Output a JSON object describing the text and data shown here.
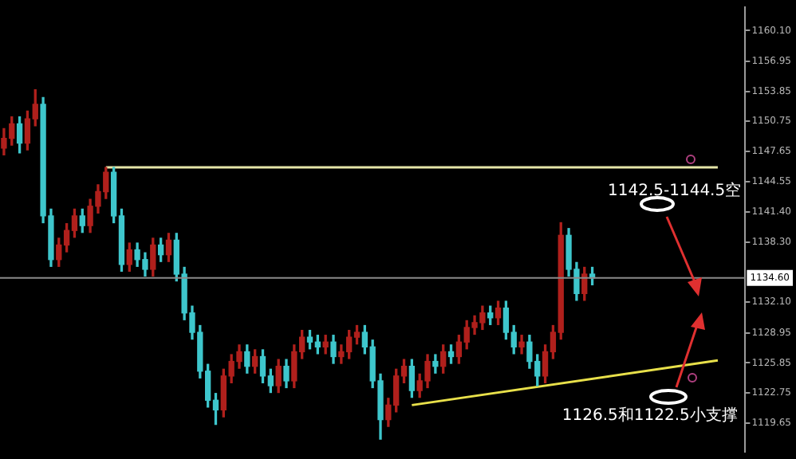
{
  "chart_data": {
    "type": "candlestick",
    "categories": [
      null,
      null,
      null,
      null,
      null,
      null,
      null,
      null,
      null,
      null,
      null,
      null,
      null,
      null,
      null,
      null,
      null,
      null,
      null,
      null,
      null,
      null,
      null,
      null,
      null,
      null,
      null,
      null,
      null,
      null,
      null,
      null,
      null,
      null,
      null,
      null,
      null,
      null,
      null,
      null,
      null,
      null,
      null,
      null,
      null,
      null,
      null,
      null,
      null,
      null,
      null,
      null,
      null,
      null,
      null,
      null,
      null,
      null,
      null,
      null,
      null,
      null,
      null,
      null,
      null,
      null,
      null,
      null,
      null,
      null,
      null,
      null,
      null,
      null,
      null,
      null,
      null,
      null,
      null,
      null,
      null,
      null,
      null,
      null,
      null,
      null,
      null,
      null,
      null,
      null,
      null,
      null,
      null,
      null,
      null
    ],
    "ohlc": [
      [
        1148,
        1150,
        1147.3,
        1149
      ],
      [
        1149,
        1151.2,
        1148.3,
        1150.5
      ],
      [
        1150.5,
        1151.2,
        1147.5,
        1148.5
      ],
      [
        1148.5,
        1151.8,
        1147.8,
        1151
      ],
      [
        1151,
        1154,
        1150.3,
        1152.5
      ],
      [
        1152.5,
        1153.2,
        1140.3,
        1141
      ],
      [
        1141,
        1141.7,
        1135.8,
        1136.5
      ],
      [
        1136.5,
        1138.7,
        1135.8,
        1138
      ],
      [
        1138,
        1140.2,
        1137.3,
        1139.5
      ],
      [
        1139.5,
        1141.7,
        1138.8,
        1141
      ],
      [
        1141,
        1141.7,
        1139.3,
        1140
      ],
      [
        1140,
        1142.7,
        1139.3,
        1142
      ],
      [
        1142,
        1144.2,
        1141.3,
        1143.5
      ],
      [
        1143.5,
        1146,
        1142.8,
        1145.5
      ],
      [
        1145.5,
        1146,
        1140.3,
        1141
      ],
      [
        1141,
        1141.7,
        1135.3,
        1136
      ],
      [
        1136,
        1138.2,
        1135.3,
        1137.5
      ],
      [
        1137.5,
        1138.2,
        1135.8,
        1136.5
      ],
      [
        1136.5,
        1137.2,
        1134.8,
        1135.5
      ],
      [
        1135.5,
        1138.7,
        1134.8,
        1138
      ],
      [
        1138,
        1138.7,
        1136.3,
        1137
      ],
      [
        1137,
        1139.2,
        1136.3,
        1138.5
      ],
      [
        1138.5,
        1139.2,
        1134.3,
        1135
      ],
      [
        1135,
        1135.7,
        1130.3,
        1131
      ],
      [
        1131,
        1131.7,
        1128.3,
        1129
      ],
      [
        1129,
        1129.7,
        1124.3,
        1125
      ],
      [
        1125,
        1125.7,
        1121.3,
        1122
      ],
      [
        1122,
        1122.7,
        1119.5,
        1121
      ],
      [
        1121,
        1125.2,
        1120.3,
        1124.5
      ],
      [
        1124.5,
        1126.7,
        1123.8,
        1126
      ],
      [
        1126,
        1127.7,
        1125.3,
        1127
      ],
      [
        1127,
        1127.7,
        1124.8,
        1125.5
      ],
      [
        1125.5,
        1127.2,
        1124.8,
        1126.5
      ],
      [
        1126.5,
        1127.2,
        1123.8,
        1124.5
      ],
      [
        1124.5,
        1125.2,
        1122.8,
        1123.5
      ],
      [
        1123.5,
        1126.2,
        1122.8,
        1125.5
      ],
      [
        1125.5,
        1126.2,
        1123.3,
        1124
      ],
      [
        1124,
        1127.7,
        1123.3,
        1127
      ],
      [
        1127,
        1129.2,
        1126.3,
        1128.5
      ],
      [
        1128.5,
        1129.2,
        1127.3,
        1128
      ],
      [
        1128,
        1128.7,
        1126.8,
        1127.5
      ],
      [
        1127.5,
        1128.7,
        1126.8,
        1128
      ],
      [
        1128,
        1128.7,
        1125.8,
        1126.5
      ],
      [
        1126.5,
        1127.7,
        1125.8,
        1127
      ],
      [
        1127,
        1129.2,
        1126.3,
        1128.5
      ],
      [
        1128.5,
        1129.7,
        1127.8,
        1129
      ],
      [
        1129,
        1129.7,
        1126.8,
        1127.5
      ],
      [
        1127.5,
        1128.2,
        1123.3,
        1124
      ],
      [
        1124,
        1124.7,
        1118,
        1120
      ],
      [
        1120,
        1122.2,
        1119.3,
        1121.5
      ],
      [
        1121.5,
        1125.2,
        1120.8,
        1124.5
      ],
      [
        1124.5,
        1126.2,
        1123.8,
        1125.5
      ],
      [
        1125.5,
        1126.2,
        1122.3,
        1123
      ],
      [
        1123,
        1124.7,
        1122.3,
        1124
      ],
      [
        1124,
        1126.7,
        1123.3,
        1126
      ],
      [
        1126,
        1126.7,
        1124.8,
        1125.5
      ],
      [
        1125.5,
        1127.7,
        1124.8,
        1127
      ],
      [
        1127,
        1127.7,
        1125.8,
        1126.5
      ],
      [
        1126.5,
        1128.7,
        1125.8,
        1128
      ],
      [
        1128,
        1130.2,
        1127.3,
        1129.5
      ],
      [
        1129.5,
        1130.7,
        1128.8,
        1130
      ],
      [
        1130,
        1131.7,
        1129.3,
        1131
      ],
      [
        1131,
        1131.7,
        1129.8,
        1130.5
      ],
      [
        1130.5,
        1132.2,
        1129.8,
        1131.5
      ],
      [
        1131.5,
        1132.2,
        1128.3,
        1129
      ],
      [
        1129,
        1129.7,
        1126.8,
        1127.5
      ],
      [
        1127.5,
        1128.7,
        1126.8,
        1128
      ],
      [
        1128,
        1128.7,
        1125.3,
        1126
      ],
      [
        1126,
        1126.7,
        1123.5,
        1124.5
      ],
      [
        1124.5,
        1127.7,
        1123.8,
        1127
      ],
      [
        1127,
        1129.7,
        1126.3,
        1129
      ],
      [
        1129,
        1140.3,
        1128.3,
        1139
      ],
      [
        1139,
        1139.7,
        1134.8,
        1135.5
      ],
      [
        1135.5,
        1136.2,
        1132.3,
        1133
      ],
      [
        1133,
        1135.7,
        1132.3,
        1135
      ],
      [
        1135,
        1135.7,
        1133.9,
        1134.6
      ],
      null,
      null,
      null,
      null,
      null,
      null,
      null,
      null,
      null,
      null,
      null,
      null,
      null,
      null,
      null,
      null,
      null,
      null,
      null
    ],
    "colors": [
      "#b0201c",
      "#b0201c",
      "#3ec6cc",
      "#b0201c",
      "#b0201c",
      "#3ec6cc",
      "#3ec6cc",
      "#b0201c",
      "#b0201c",
      "#b0201c",
      "#3ec6cc",
      "#b0201c",
      "#b0201c",
      "#b0201c",
      "#3ec6cc",
      "#3ec6cc",
      "#b0201c",
      "#3ec6cc",
      "#3ec6cc",
      "#b0201c",
      "#3ec6cc",
      "#b0201c",
      "#3ec6cc",
      "#3ec6cc",
      "#3ec6cc",
      "#3ec6cc",
      "#3ec6cc",
      "#3ec6cc",
      "#b0201c",
      "#b0201c",
      "#b0201c",
      "#3ec6cc",
      "#b0201c",
      "#3ec6cc",
      "#3ec6cc",
      "#b0201c",
      "#3ec6cc",
      "#b0201c",
      "#b0201c",
      "#3ec6cc",
      "#3ec6cc",
      "#b0201c",
      "#3ec6cc",
      "#b0201c",
      "#b0201c",
      "#b0201c",
      "#3ec6cc",
      "#3ec6cc",
      "#3ec6cc",
      "#b0201c",
      "#b0201c",
      "#b0201c",
      "#3ec6cc",
      "#b0201c",
      "#b0201c",
      "#3ec6cc",
      "#b0201c",
      "#3ec6cc",
      "#b0201c",
      "#b0201c",
      "#b0201c",
      "#b0201c",
      "#3ec6cc",
      "#b0201c",
      "#3ec6cc",
      "#3ec6cc",
      "#b0201c",
      "#3ec6cc",
      "#3ec6cc",
      "#b0201c",
      "#b0201c",
      "#b0201c",
      "#3ec6cc",
      "#3ec6cc",
      "#b0201c",
      "#3ec6cc",
      null,
      null,
      null,
      null,
      null,
      null,
      null,
      null,
      null,
      null,
      null,
      null,
      null,
      null,
      null,
      null,
      null,
      null,
      null
    ],
    "series": [
      {
        "type": "line",
        "values": [
          null,
          null,
          null,
          null,
          null,
          null,
          null,
          null,
          null,
          null,
          null,
          null,
          null,
          1146,
          null,
          null,
          null,
          null,
          null,
          null,
          null,
          null,
          null,
          null,
          null,
          null,
          null,
          null,
          null,
          null,
          null,
          null,
          null,
          null,
          null,
          null,
          null,
          null,
          null,
          null,
          null,
          null,
          null,
          null,
          null,
          null,
          null,
          null,
          null,
          null,
          null,
          null,
          null,
          null,
          null,
          null,
          null,
          null,
          null,
          null,
          null,
          null,
          null,
          null,
          null,
          null,
          null,
          null,
          null,
          null,
          null,
          null,
          null,
          null,
          null,
          null,
          null,
          null,
          null,
          null,
          null,
          null,
          null,
          null,
          null,
          null,
          null,
          null,
          null,
          null,
          null,
          1146,
          null,
          null,
          null
        ],
        "color": "#e6e6a8"
      },
      {
        "type": "line",
        "values": [
          null,
          null,
          null,
          null,
          null,
          null,
          null,
          null,
          null,
          null,
          null,
          null,
          null,
          null,
          null,
          null,
          null,
          null,
          null,
          null,
          null,
          null,
          null,
          null,
          null,
          null,
          null,
          null,
          null,
          null,
          null,
          null,
          null,
          null,
          null,
          null,
          null,
          null,
          null,
          null,
          null,
          null,
          null,
          null,
          null,
          null,
          null,
          null,
          null,
          null,
          null,
          null,
          1121.5,
          null,
          null,
          null,
          null,
          null,
          null,
          null,
          null,
          null,
          null,
          null,
          null,
          null,
          null,
          null,
          null,
          null,
          null,
          null,
          null,
          null,
          null,
          null,
          null,
          null,
          null,
          null,
          null,
          null,
          null,
          null,
          null,
          null,
          null,
          null,
          null,
          null,
          null,
          1126.1,
          null,
          null,
          null
        ],
        "color": "#e8e04a"
      }
    ],
    "ylim": [
      1116.7,
      1162.5
    ],
    "yticks": [
      {
        "value": 1160.1,
        "label": "1160.10"
      },
      {
        "value": 1156.95,
        "label": "1156.95"
      },
      {
        "value": 1153.85,
        "label": "1153.85"
      },
      {
        "value": 1150.75,
        "label": "1150.75"
      },
      {
        "value": 1147.65,
        "label": "1147.65"
      },
      {
        "value": 1144.55,
        "label": "1144.55"
      },
      {
        "value": 1141.4,
        "label": "1141.40"
      },
      {
        "value": 1138.3,
        "label": "1138.30"
      },
      {
        "value": 1132.1,
        "label": "1132.10"
      },
      {
        "value": 1128.95,
        "label": "1128.95"
      },
      {
        "value": 1125.85,
        "label": "1125.85"
      },
      {
        "value": 1122.75,
        "label": "1122.75"
      },
      {
        "value": 1119.65,
        "label": "1119.65"
      }
    ],
    "ref_lines": [
      {
        "axis": "y",
        "value": 1134.6,
        "label": "1134.60",
        "color": "#8a8a8a"
      }
    ],
    "annotations": [
      "1142.5-1144.5空",
      "1126.5和1122.5小支撑"
    ],
    "tick_labels": "y",
    "grid": false,
    "legend": false
  }
}
